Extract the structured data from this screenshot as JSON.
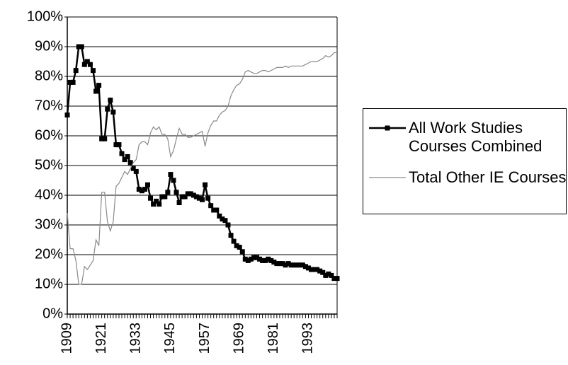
{
  "chart_data": {
    "type": "line",
    "x": [
      1909,
      1910,
      1911,
      1912,
      1913,
      1914,
      1915,
      1916,
      1917,
      1918,
      1919,
      1920,
      1921,
      1922,
      1923,
      1924,
      1925,
      1926,
      1927,
      1928,
      1929,
      1930,
      1931,
      1932,
      1933,
      1934,
      1935,
      1936,
      1937,
      1938,
      1939,
      1940,
      1941,
      1942,
      1943,
      1944,
      1945,
      1946,
      1947,
      1948,
      1949,
      1950,
      1951,
      1952,
      1953,
      1954,
      1955,
      1956,
      1957,
      1958,
      1959,
      1960,
      1961,
      1962,
      1963,
      1964,
      1965,
      1966,
      1967,
      1968,
      1969,
      1970,
      1971,
      1972,
      1973,
      1974,
      1975,
      1976,
      1977,
      1978,
      1979,
      1980,
      1981,
      1982,
      1983,
      1984,
      1985,
      1986,
      1987,
      1988,
      1989,
      1990,
      1991,
      1992,
      1993,
      1994,
      1995,
      1996,
      1997,
      1998,
      1999,
      2000,
      2001,
      2002,
      2003
    ],
    "series": [
      {
        "name": "All Work Studies Courses Combined",
        "color": "#000000",
        "marker": true,
        "values": [
          67,
          78,
          78,
          82,
          90,
          90,
          84,
          85,
          84,
          82,
          75,
          77,
          59,
          59,
          69,
          72,
          68,
          57,
          57,
          54,
          52,
          53,
          51,
          49,
          48,
          42,
          41.5,
          42,
          43.5,
          39,
          37,
          38,
          37,
          39.5,
          39.5,
          41,
          47,
          45,
          41,
          37.5,
          39.5,
          39.5,
          40.5,
          40.5,
          40,
          39.5,
          39,
          38.5,
          43.5,
          39,
          36.5,
          35,
          35,
          33,
          32,
          31.5,
          30,
          26.5,
          24.5,
          23,
          22.5,
          21,
          18.5,
          18,
          18.5,
          19,
          19,
          18.5,
          18,
          18,
          18.5,
          18,
          17.5,
          17,
          17,
          17,
          16.5,
          17,
          16.5,
          16.5,
          16.5,
          16.5,
          16.5,
          16,
          15.5,
          15,
          15,
          15,
          14.5,
          14,
          13,
          13.5,
          13,
          12,
          12
        ]
      },
      {
        "name": "Total Other IE Courses",
        "color": "#8a8a8a",
        "marker": false,
        "values": [
          34,
          22,
          22,
          18,
          10,
          10,
          16,
          15,
          16.5,
          18,
          25,
          23,
          41,
          41,
          31,
          28,
          31,
          43,
          44,
          46,
          48,
          47,
          49,
          51,
          52,
          57,
          58,
          58,
          57,
          61,
          63,
          62,
          63,
          60.5,
          60.5,
          59,
          53,
          55,
          59,
          62.5,
          60.5,
          60.5,
          59.5,
          59.5,
          60,
          60.5,
          61,
          61.5,
          56.5,
          61,
          63.5,
          65,
          65,
          67,
          68,
          68.5,
          70,
          73.5,
          75.5,
          77,
          77.5,
          79,
          81.5,
          82,
          81.5,
          81,
          81,
          81.5,
          82,
          82,
          81.5,
          82,
          82.5,
          83,
          83,
          83,
          83.5,
          83,
          83.5,
          83.5,
          83.5,
          83.5,
          83.5,
          84,
          84.5,
          85,
          85,
          85,
          85.5,
          86,
          87,
          86.5,
          87,
          88,
          88
        ]
      }
    ],
    "xlim": [
      1909,
      2003
    ],
    "xticks": [
      1909,
      1921,
      1933,
      1945,
      1957,
      1969,
      1981,
      1993
    ],
    "ylim": [
      0,
      100
    ],
    "yticks": [
      {
        "value": 0,
        "label": "0%"
      },
      {
        "value": 10,
        "label": "10%"
      },
      {
        "value": 20,
        "label": "20%"
      },
      {
        "value": 30,
        "label": "30%"
      },
      {
        "value": 40,
        "label": "40%"
      },
      {
        "value": 50,
        "label": "50%"
      },
      {
        "value": 60,
        "label": "60%"
      },
      {
        "value": 70,
        "label": "70%"
      },
      {
        "value": 80,
        "label": "80%"
      },
      {
        "value": 90,
        "label": "90%"
      },
      {
        "value": 100,
        "label": "100%"
      }
    ],
    "grid": true
  }
}
